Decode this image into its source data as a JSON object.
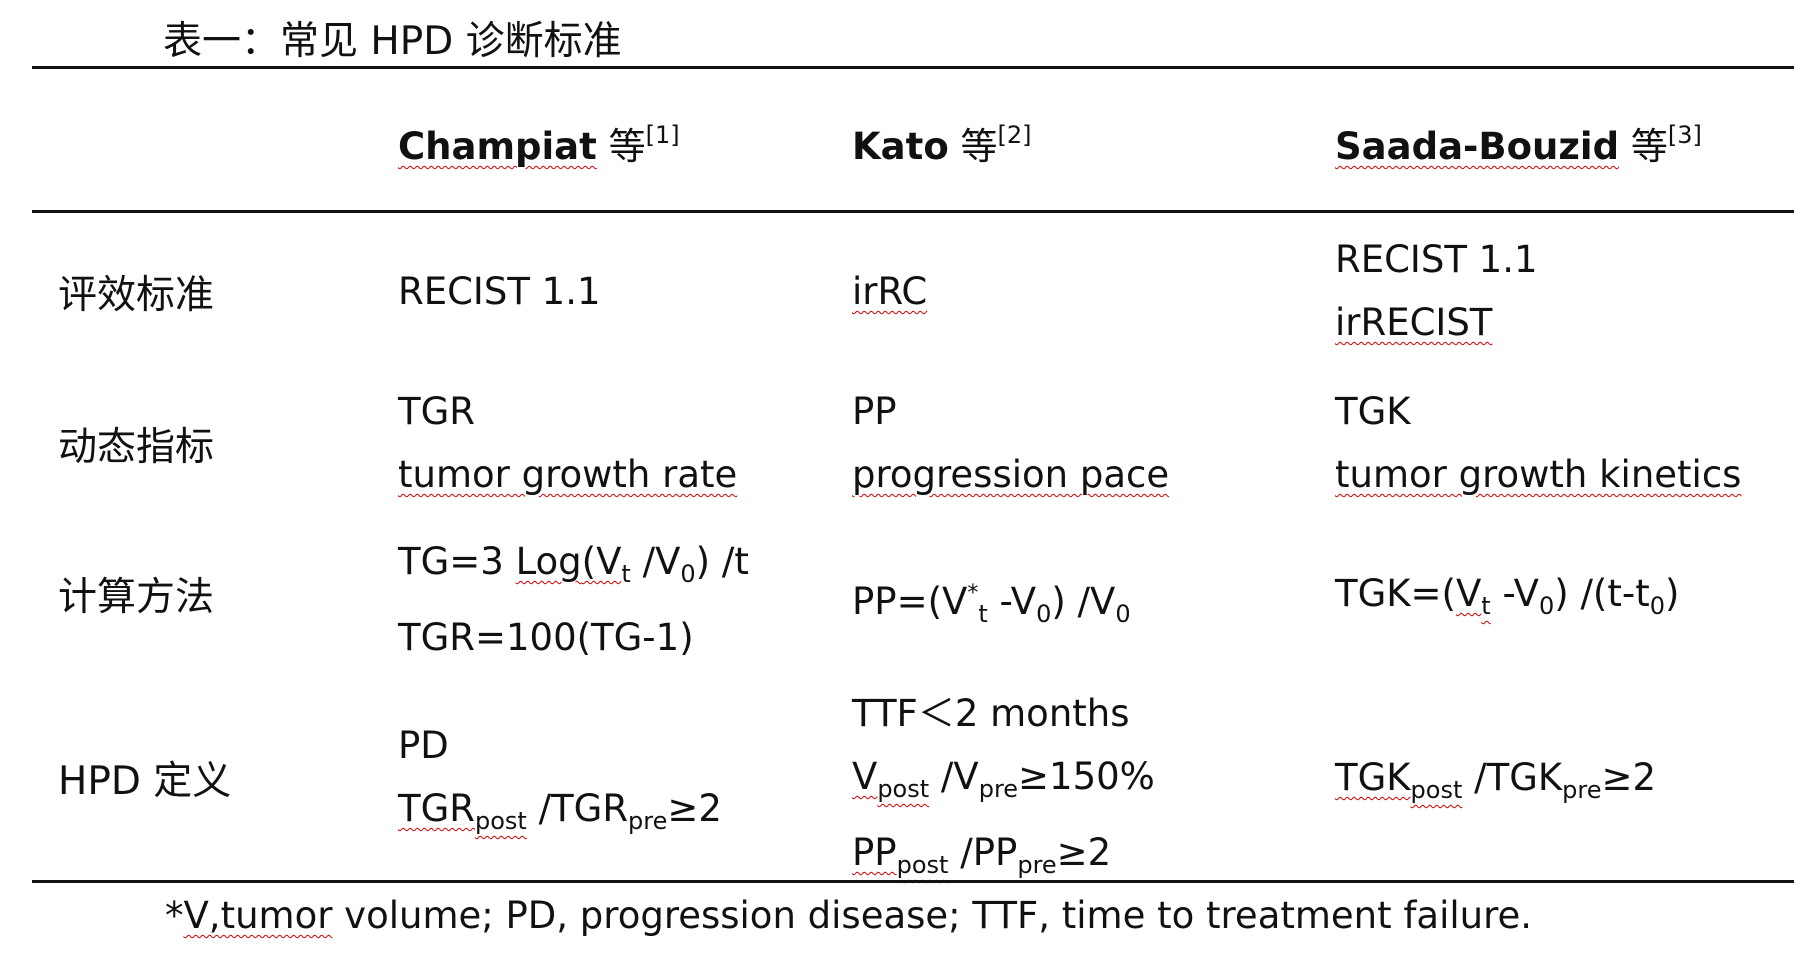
{
  "caption": "表一：常见 HPD 诊断标准",
  "header": {
    "col1": {
      "name": "Champiat",
      "suffix": " 等",
      "ref": "[1]"
    },
    "col2": {
      "name": "Kato",
      "suffix": " 等",
      "ref": "[2]"
    },
    "col3": {
      "name": "Saada-Bouzid",
      "suffix": " 等",
      "ref": "[3]"
    }
  },
  "rows": {
    "criteria": {
      "label": "评效标准",
      "c1": "RECIST 1.1",
      "c2": "irRC",
      "c3": [
        "RECIST 1.1",
        "irRECIST"
      ]
    },
    "metric": {
      "label": "动态指标",
      "c1": [
        "TGR",
        "tumor growth rate"
      ],
      "c2": [
        "PP",
        "progression pace"
      ],
      "c3": [
        "TGK",
        "tumor growth kinetics"
      ]
    },
    "calc": {
      "label": "计算方法",
      "c1_line1": {
        "a": "TG=3 ",
        "log": "Log",
        "b": "(V",
        "s1": "t",
        "c": " /V",
        "s2": "0",
        "d": ") /t"
      },
      "c1_line2": "TGR=100(TG-1)",
      "c2": {
        "a": "PP=(V",
        "sup": "*",
        "s1": "t",
        "b": " -V",
        "s2": "0",
        "c": ") /V",
        "s3": "0"
      },
      "c3": {
        "a": "TGK=(",
        "v": "V",
        "s1": "t",
        "b": " -V",
        "s2": "0",
        "c": ") /(t-t",
        "s3": "0",
        "d": ")"
      }
    },
    "hpd": {
      "label": "HPD 定义",
      "c1_line1": "PD",
      "c1_line2": {
        "a": "TGR",
        "s1": "post",
        "b": " /TGR",
        "s2": "pre",
        "c": "≥2"
      },
      "c2_line1": "TTF＜2 months",
      "c2_line2": {
        "a": "V",
        "s1": "post",
        "b": " /V",
        "s2": "pre",
        "c": "≥150%"
      },
      "c2_line3": {
        "a": "PP",
        "s1": "post",
        "b": " /PP",
        "s2": "pre",
        "c": "≥2"
      },
      "c3": {
        "a": "TGK",
        "s1": "post",
        "b": " /TGK",
        "s2": "pre",
        "c": "≥2"
      }
    }
  },
  "footnote": {
    "star": "*",
    "v": "V,tumor",
    "rest": " volume; PD, progression disease; TTF, time to treatment failure."
  }
}
